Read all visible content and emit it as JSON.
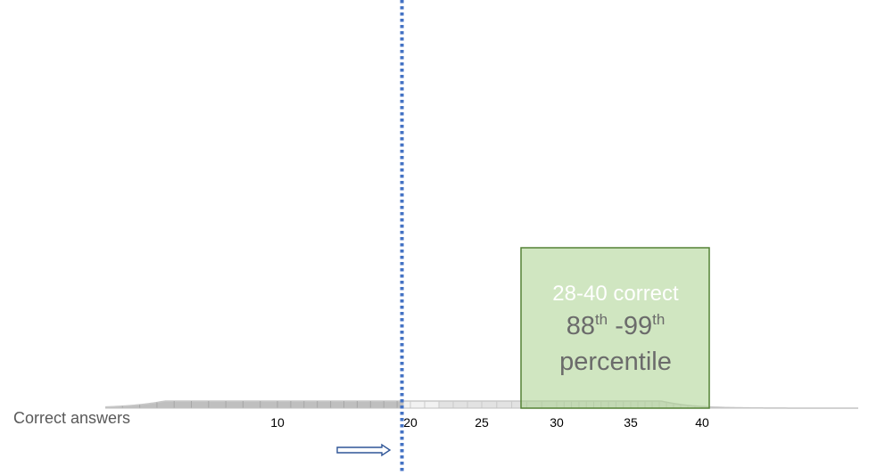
{
  "chart_data": {
    "type": "area",
    "description_free": true,
    "xlabel": "Correct answers",
    "xlim": [
      0,
      50
    ],
    "ylim": [
      0,
      1
    ],
    "x_ticks": [
      10,
      20,
      25,
      30,
      35,
      40
    ],
    "x_tick_labels": [
      "10",
      "20",
      "25",
      "30",
      "35",
      "40"
    ],
    "distribution": {
      "mean": 20.3,
      "sd": 6.0
    },
    "shading": [
      {
        "from": 0,
        "to": 19.5,
        "color": "#bfbfbf"
      },
      {
        "from": 19.5,
        "to": 22,
        "color": "#f2f2f2"
      },
      {
        "from": 22,
        "to": 50,
        "color": "#e2e2e2"
      }
    ],
    "marker_line": {
      "x": 19.5,
      "color": "#4472c4",
      "style": "dotted"
    },
    "arrow_color": "#2f5597",
    "callout": {
      "range_text": "28-40 correct",
      "pct_low": "88",
      "pct_low_sup": "th",
      "pct_sep": " -",
      "pct_high": "99",
      "pct_high_sup": "th",
      "pct_word": "percentile",
      "x_from": 28,
      "x_to": 40,
      "fill": "#a9d18e",
      "border": "#548235"
    }
  }
}
